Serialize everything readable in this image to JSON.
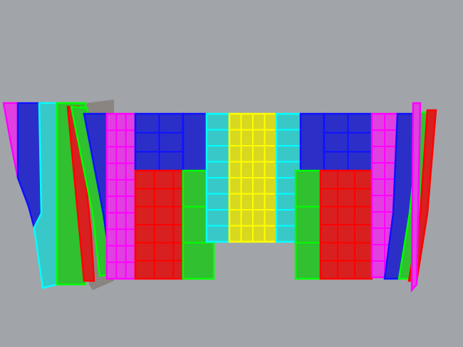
{
  "viewport": {
    "background": "#a1a5aa",
    "colors": {
      "blue": "#2b2fc8",
      "blue_edge": "#1010ff",
      "magenta": "#e040e0",
      "magenta_edge": "#ff00ff",
      "red": "#d82020",
      "red_edge": "#ff0000",
      "green": "#30c030",
      "green_edge": "#00ff00",
      "cyan": "#38c8c8",
      "cyan_edge": "#00ffff",
      "yellow": "#d8d820",
      "yellow_edge": "#ffff00",
      "gray": "#8a8580"
    }
  }
}
